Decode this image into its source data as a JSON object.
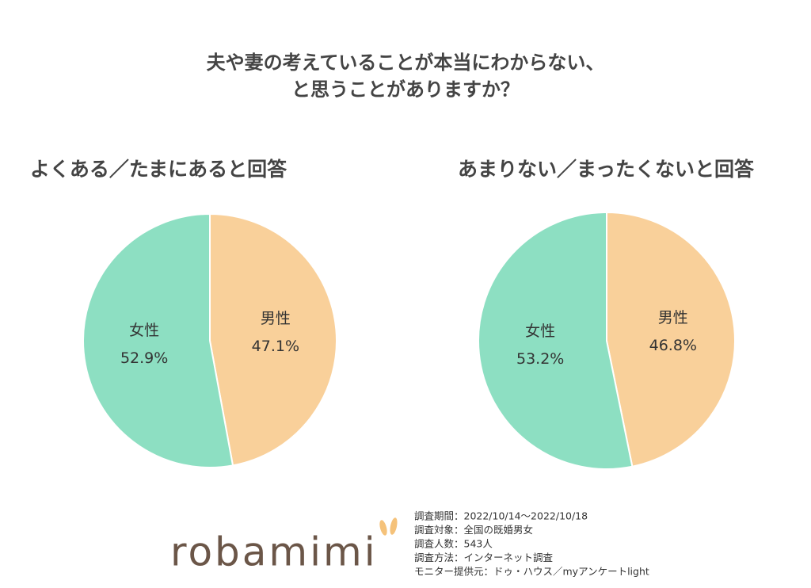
{
  "header": {
    "title": [
      "夫や妻の考えていることが本当にわからない、",
      "と思うことがありますか？"
    ]
  },
  "chart_data": [
    {
      "type": "pie",
      "title": "よくある／たまにあると回答",
      "categories": [
        "男性",
        "女性"
      ],
      "values": [
        47.1,
        52.9
      ],
      "value_labels": [
        "47.1%",
        "52.9%"
      ],
      "colors": [
        "#f9d09a",
        "#8ddfc2"
      ]
    },
    {
      "type": "pie",
      "title": "あまりない／まったくないと回答",
      "categories": [
        "男性",
        "女性"
      ],
      "values": [
        46.8,
        53.2
      ],
      "value_labels": [
        "46.8%",
        "53.2%"
      ],
      "colors": [
        "#f9d09a",
        "#8ddfc2"
      ]
    }
  ],
  "footer": {
    "logo": "robamimi",
    "notes": [
      "調査期間：2022/10/14～2022/10/18",
      "調査対象：全国の既婚男女",
      "調査人数：543人",
      "調査方法：インターネット調査",
      "モニター提供元：ドゥ・ハウス／myアンケートlight"
    ]
  }
}
